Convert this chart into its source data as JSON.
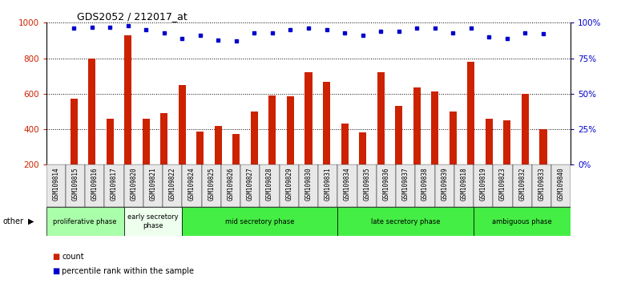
{
  "title": "GDS2052 / 212017_at",
  "samples": [
    "GSM109814",
    "GSM109815",
    "GSM109816",
    "GSM109817",
    "GSM109820",
    "GSM109821",
    "GSM109822",
    "GSM109824",
    "GSM109825",
    "GSM109826",
    "GSM109827",
    "GSM109828",
    "GSM109829",
    "GSM109830",
    "GSM109831",
    "GSM109834",
    "GSM109835",
    "GSM109836",
    "GSM109837",
    "GSM109838",
    "GSM109839",
    "GSM109818",
    "GSM109819",
    "GSM109823",
    "GSM109832",
    "GSM109833",
    "GSM109840"
  ],
  "counts": [
    570,
    800,
    460,
    930,
    460,
    490,
    650,
    385,
    420,
    375,
    500,
    590,
    585,
    720,
    665,
    430,
    380,
    720,
    530,
    635,
    615,
    500,
    780,
    460,
    450,
    600,
    400
  ],
  "percentiles": [
    96,
    97,
    97,
    98,
    95,
    93,
    89,
    91,
    88,
    87,
    93,
    93,
    95,
    96,
    95,
    93,
    91,
    94,
    94,
    96,
    96,
    93,
    96,
    90,
    89,
    93,
    92
  ],
  "phases": [
    {
      "label": "proliferative phase",
      "start": 0,
      "end": 4,
      "color": "#aaffaa"
    },
    {
      "label": "early secretory\nphase",
      "start": 4,
      "end": 7,
      "color": "#eeffee"
    },
    {
      "label": "mid secretory phase",
      "start": 7,
      "end": 15,
      "color": "#44ee44"
    },
    {
      "label": "late secretory phase",
      "start": 15,
      "end": 22,
      "color": "#44ee44"
    },
    {
      "label": "ambiguous phase",
      "start": 22,
      "end": 27,
      "color": "#44ee44"
    }
  ],
  "bar_color": "#cc2200",
  "dot_color": "#0000cc",
  "ylim_left": [
    200,
    1000
  ],
  "ylim_right": [
    0,
    100
  ],
  "yticks_left": [
    200,
    400,
    600,
    800,
    1000
  ],
  "yticks_right": [
    0,
    25,
    50,
    75,
    100
  ],
  "grid_values": [
    400,
    600,
    800,
    1000
  ],
  "background_color": "#ffffff"
}
